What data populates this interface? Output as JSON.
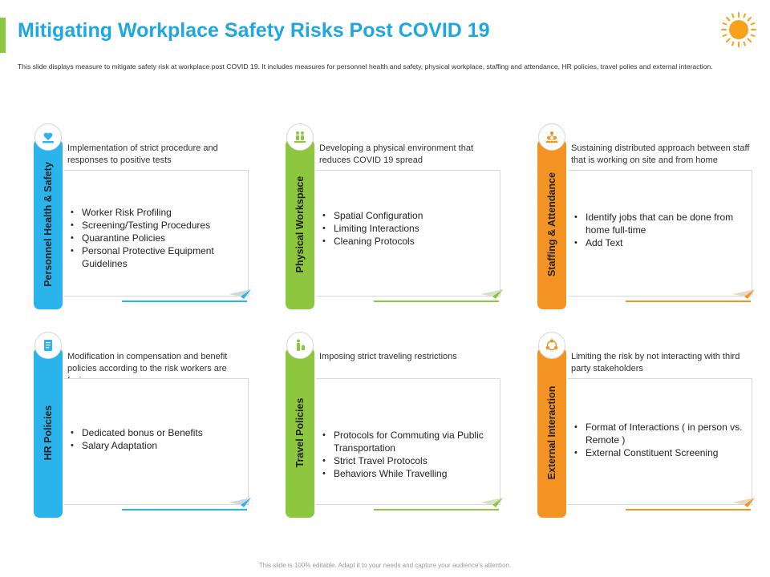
{
  "title": "Mitigating Workplace Safety Risks Post COVID 19",
  "description": "This slide displays measure to mitigate safety risk at workplace post COVID 19. It includes measures for personnel health and safety, physical workplace, staffing and attendance, HR policies, travel polies and external interaction.",
  "footer": "This slide is 100% editable. Adapt it to your needs and capture your audience's attention.",
  "colors": {
    "blue": "#2bb4ec",
    "green": "#8dc63f",
    "orange": "#f39323",
    "title": "#1ea7e1",
    "sun": "#f7a21b"
  },
  "cards": [
    {
      "label": "Personnel Health & Safety",
      "icon": "health-heart-hand-icon",
      "heading": "Implementation of strict procedure and responses to positive tests",
      "items": [
        "Worker Risk Profiling",
        "Screening/Testing Procedures",
        "Quarantine Policies",
        "Personal Protective Equipment Guidelines"
      ]
    },
    {
      "label": "Physical Workspace",
      "icon": "workspace-people-icon",
      "heading": "Developing a physical environment that reduces COVID 19 spread",
      "items": [
        "Spatial Configuration",
        "Limiting Interactions",
        "Cleaning Protocols"
      ]
    },
    {
      "label": "Staffing & Attendance",
      "icon": "staff-pyramid-icon",
      "heading": "Sustaining distributed approach between staff that is working on site and from home",
      "items": [
        "Identify jobs that can be done from home full-time",
        "Add Text"
      ]
    },
    {
      "label": "HR Policies",
      "icon": "document-icon",
      "heading": "Modification in compensation and benefit policies according to the risk workers  are facing",
      "items": [
        "Dedicated bonus or Benefits",
        "Salary Adaptation"
      ]
    },
    {
      "label": "Travel Policies",
      "icon": "traveler-luggage-icon",
      "heading": "Imposing strict traveling restrictions",
      "items": [
        "Protocols for Commuting via Public Transportation",
        "Strict Travel  Protocols",
        "Behaviors  While Travelling"
      ]
    },
    {
      "label": "External Interaction",
      "icon": "network-interaction-icon",
      "heading": "Limiting the risk by not interacting with third party stakeholders",
      "items": [
        "Format of Interactions  ( in person vs. Remote )",
        "External Constituent Screening"
      ]
    }
  ]
}
